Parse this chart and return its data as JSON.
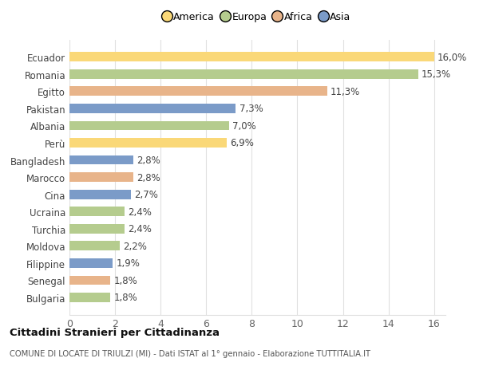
{
  "categories": [
    "Bulgaria",
    "Senegal",
    "Filippine",
    "Moldova",
    "Turchia",
    "Ucraina",
    "Cina",
    "Marocco",
    "Bangladesh",
    "Perù",
    "Albania",
    "Pakistan",
    "Egitto",
    "Romania",
    "Ecuador"
  ],
  "values": [
    1.8,
    1.8,
    1.9,
    2.2,
    2.4,
    2.4,
    2.7,
    2.8,
    2.8,
    6.9,
    7.0,
    7.3,
    11.3,
    15.3,
    16.0
  ],
  "labels": [
    "1,8%",
    "1,8%",
    "1,9%",
    "2,2%",
    "2,4%",
    "2,4%",
    "2,7%",
    "2,8%",
    "2,8%",
    "6,9%",
    "7,0%",
    "7,3%",
    "11,3%",
    "15,3%",
    "16,0%"
  ],
  "colors": [
    "#b5cc8e",
    "#e8b48a",
    "#7b9bc8",
    "#b5cc8e",
    "#b5cc8e",
    "#b5cc8e",
    "#7b9bc8",
    "#e8b48a",
    "#7b9bc8",
    "#fad878",
    "#b5cc8e",
    "#7b9bc8",
    "#e8b48a",
    "#b5cc8e",
    "#fad878"
  ],
  "legend_labels": [
    "America",
    "Europa",
    "Africa",
    "Asia"
  ],
  "legend_colors": [
    "#fad878",
    "#b5cc8e",
    "#e8b48a",
    "#7b9bc8"
  ],
  "title": "Cittadini Stranieri per Cittadinanza",
  "subtitle": "COMUNE DI LOCATE DI TRIULZI (MI) - Dati ISTAT al 1° gennaio - Elaborazione TUTTITALIA.IT",
  "xlim_max": 16,
  "xticks": [
    0,
    2,
    4,
    6,
    8,
    10,
    12,
    14,
    16
  ],
  "background_color": "#ffffff",
  "grid_color": "#e0e0e0",
  "label_fontsize": 8.5,
  "ytick_fontsize": 8.5
}
